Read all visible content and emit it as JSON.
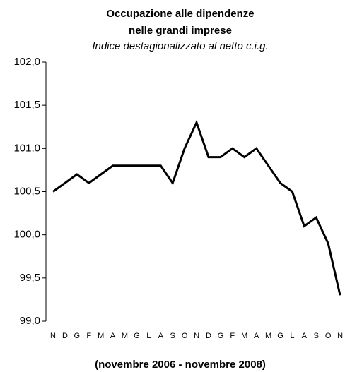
{
  "chart_data": {
    "type": "line",
    "title": [
      "Occupazione alle dipendenze",
      "nelle grandi imprese"
    ],
    "subtitle": "Indice destagionalizzato al netto c.i.g.",
    "footnote": "(novembre 2006 - novembre 2008)",
    "categories": [
      "N",
      "D",
      "G",
      "F",
      "M",
      "A",
      "M",
      "G",
      "L",
      "A",
      "S",
      "O",
      "N",
      "D",
      "G",
      "F",
      "M",
      "A",
      "M",
      "G",
      "L",
      "A",
      "S",
      "O",
      "N"
    ],
    "values": [
      100.5,
      100.6,
      100.7,
      100.6,
      100.7,
      100.8,
      100.8,
      100.8,
      100.8,
      100.8,
      100.6,
      101.0,
      101.3,
      100.9,
      100.9,
      101.0,
      100.9,
      101.0,
      100.8,
      100.6,
      100.5,
      100.1,
      100.2,
      99.9,
      99.3
    ],
    "color": "#000000",
    "ylim": [
      99,
      102
    ],
    "yticks": [
      {
        "value": 99,
        "label": "99,0"
      },
      {
        "value": 99.5,
        "label": "99,5"
      },
      {
        "value": 100,
        "label": "100,0"
      },
      {
        "value": 100.5,
        "label": "100,5"
      },
      {
        "value": 101,
        "label": "101,0"
      },
      {
        "value": 101.5,
        "label": "101,5"
      },
      {
        "value": 102,
        "label": "102,0"
      }
    ],
    "grid": false
  }
}
